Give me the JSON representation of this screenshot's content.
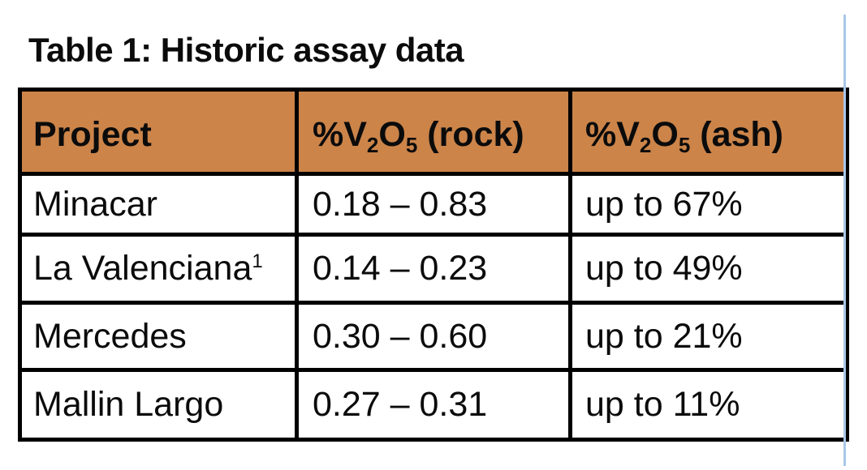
{
  "page": {
    "title": "Table 1: Historic assay data"
  },
  "colors": {
    "page_bg": "#FFFFFF",
    "header_bg": "#CC8449",
    "table_border": "#000000",
    "text": "#0B0B0B",
    "cursor_line": "#A9C7E9"
  },
  "table": {
    "header": {
      "project": "Project",
      "rock": {
        "pre": "%V",
        "sub1": "2",
        "mid": "O",
        "sub2": "5",
        "post": " (rock)"
      },
      "ash": {
        "pre": "%V",
        "sub1": "2",
        "mid": "O",
        "sub2": "5",
        "post": " (ash)"
      }
    },
    "rows": [
      {
        "project": "Minacar",
        "note": "",
        "rock": "0.18 – 0.83",
        "ash": "up to 67%"
      },
      {
        "project": "La Valenciana",
        "note": "1",
        "rock": "0.14 – 0.23",
        "ash": "up to 49%"
      },
      {
        "project": "Mercedes",
        "note": "",
        "rock": "0.30 – 0.60",
        "ash": "up to 21%"
      },
      {
        "project": "Mallin Largo",
        "note": "",
        "rock": "0.27 – 0.31",
        "ash": "up to 11%"
      }
    ]
  },
  "chart_data": {
    "type": "table",
    "title": "Table 1: Historic assay data",
    "columns": [
      "Project",
      "%V₂O₅ (rock)",
      "%V₂O₅ (ash)"
    ],
    "rows": [
      [
        "Minacar",
        "0.18 – 0.83",
        "up to 67%"
      ],
      [
        "La Valenciana¹",
        "0.14 – 0.23",
        "up to 49%"
      ],
      [
        "Mercedes",
        "0.30 – 0.60",
        "up to 21%"
      ],
      [
        "Mallin Largo",
        "0.27 – 0.31",
        "up to 11%"
      ]
    ]
  }
}
